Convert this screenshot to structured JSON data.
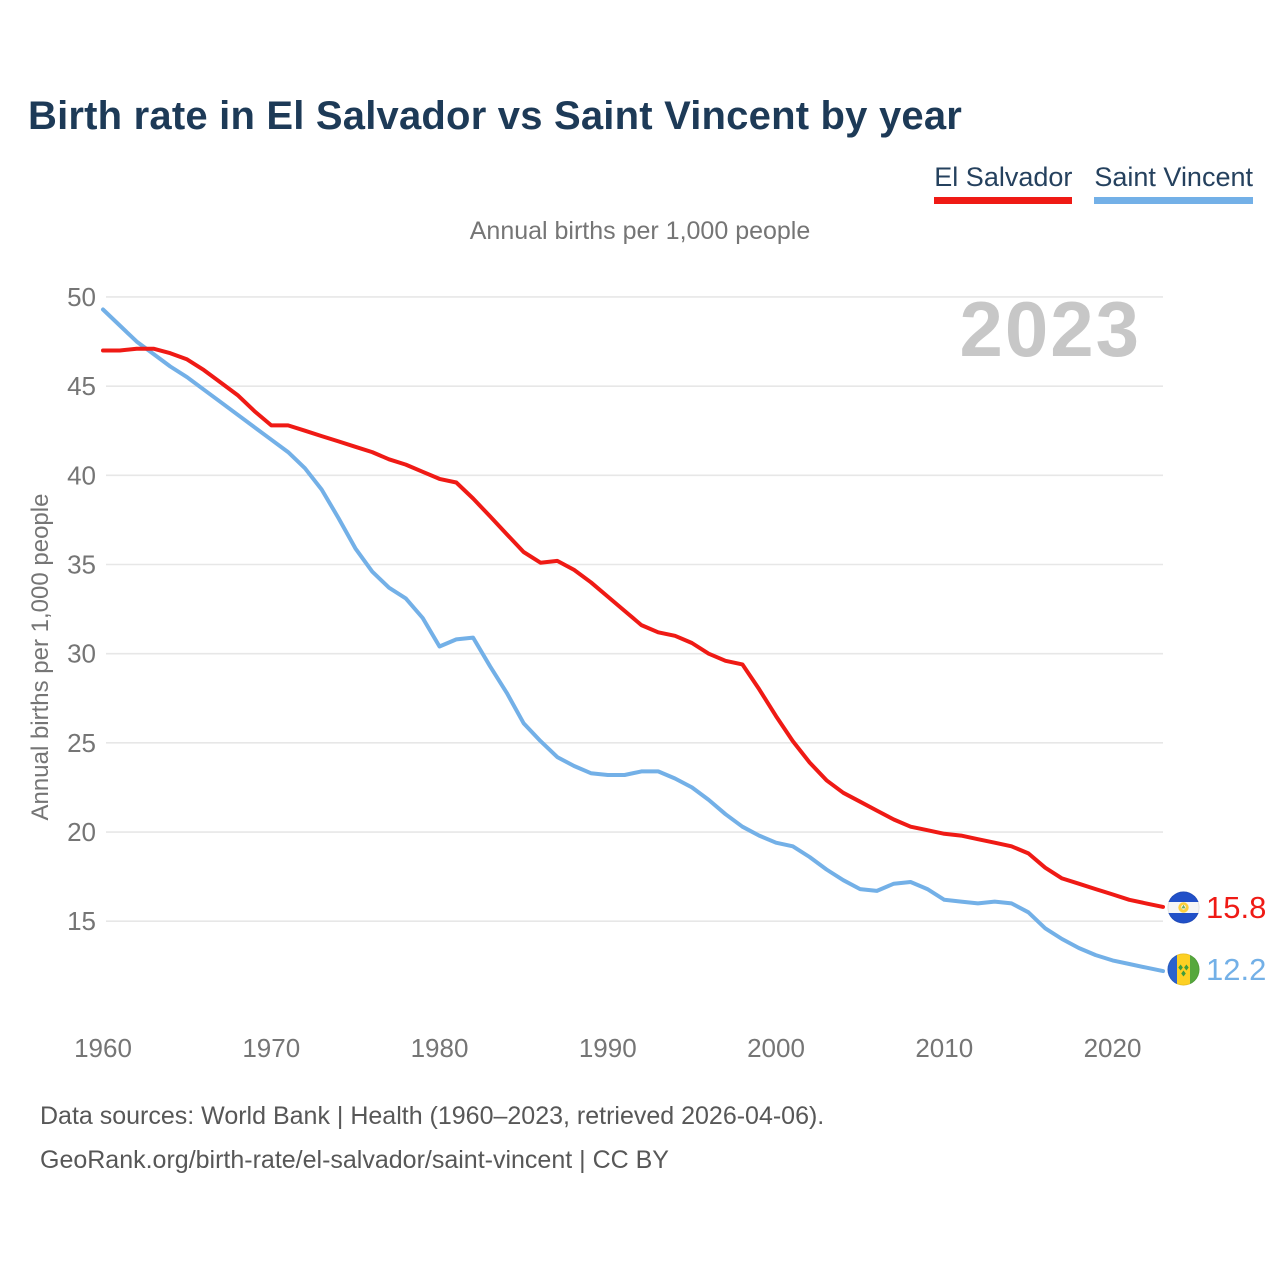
{
  "header": {
    "title": "Birth rate in El Salvador vs Saint Vincent by year"
  },
  "legend": {
    "items": [
      {
        "label": "El Salvador",
        "color": "#ef1a15"
      },
      {
        "label": "Saint Vincent",
        "color": "#73b0e7"
      }
    ]
  },
  "subtitle": "Annual births per 1,000 people",
  "watermark": "2023",
  "end_labels": {
    "el_salvador": {
      "value": "15.8",
      "color": "#ef1a15",
      "icon": "el-salvador-flag-icon"
    },
    "saint_vincent": {
      "value": "12.2",
      "color": "#73b0e7",
      "icon": "saint-vincent-flag-icon"
    }
  },
  "footer": {
    "line1": "Data sources: World Bank | Health (1960–2023, retrieved 2026-04-06).",
    "line2": "GeoRank.org/birth-rate/el-salvador/saint-vincent | CC BY"
  },
  "chart_data": {
    "type": "line",
    "title": "Birth rate in El Salvador vs Saint Vincent by year",
    "subtitle": "Annual births per 1,000 people",
    "ylabel": "Annual births per 1,000 people",
    "x": {
      "start": 1960,
      "end": 2023,
      "step": 1
    },
    "xticks": [
      1960,
      1970,
      1980,
      1990,
      2000,
      2010,
      2020
    ],
    "yticks": [
      15,
      20,
      25,
      30,
      35,
      40,
      45,
      50
    ],
    "ylim": [
      11.5,
      50.5
    ],
    "grid": true,
    "legend_position": "top-right",
    "end_value_labels": {
      "el_salvador": 15.8,
      "saint_vincent": 12.2
    },
    "series": [
      {
        "name": "El Salvador",
        "color": "#ef1a15",
        "values": [
          47.0,
          47.0,
          47.1,
          47.1,
          46.85,
          46.5,
          45.9,
          45.2,
          44.5,
          43.6,
          42.8,
          42.8,
          42.5,
          42.2,
          41.9,
          41.6,
          41.3,
          40.9,
          40.6,
          40.2,
          39.8,
          39.6,
          38.7,
          37.7,
          36.7,
          35.7,
          35.1,
          35.2,
          34.7,
          34.0,
          33.2,
          32.4,
          31.6,
          31.2,
          31.0,
          30.6,
          30.0,
          29.6,
          29.4,
          28.0,
          26.5,
          25.1,
          23.9,
          22.9,
          22.2,
          21.7,
          21.2,
          20.7,
          20.3,
          20.1,
          19.9,
          19.8,
          19.6,
          19.4,
          19.2,
          18.8,
          18.0,
          17.4,
          17.1,
          16.8,
          16.5,
          16.2,
          16.0,
          15.8
        ]
      },
      {
        "name": "Saint Vincent",
        "color": "#73b0e7",
        "values": [
          49.3,
          48.4,
          47.5,
          46.8,
          46.1,
          45.5,
          44.8,
          44.1,
          43.4,
          42.7,
          42.0,
          41.3,
          40.4,
          39.2,
          37.6,
          35.9,
          34.6,
          33.7,
          33.1,
          32.0,
          30.4,
          30.8,
          30.9,
          29.3,
          27.8,
          26.1,
          25.1,
          24.2,
          23.7,
          23.3,
          23.2,
          23.2,
          23.4,
          23.4,
          23.0,
          22.5,
          21.8,
          21.0,
          20.3,
          19.8,
          19.4,
          19.2,
          18.6,
          17.9,
          17.3,
          16.8,
          16.7,
          17.1,
          17.2,
          16.8,
          16.2,
          16.1,
          16.0,
          16.1,
          16.0,
          15.5,
          14.6,
          14.0,
          13.5,
          13.1,
          12.8,
          12.6,
          12.4,
          12.2
        ]
      }
    ]
  }
}
